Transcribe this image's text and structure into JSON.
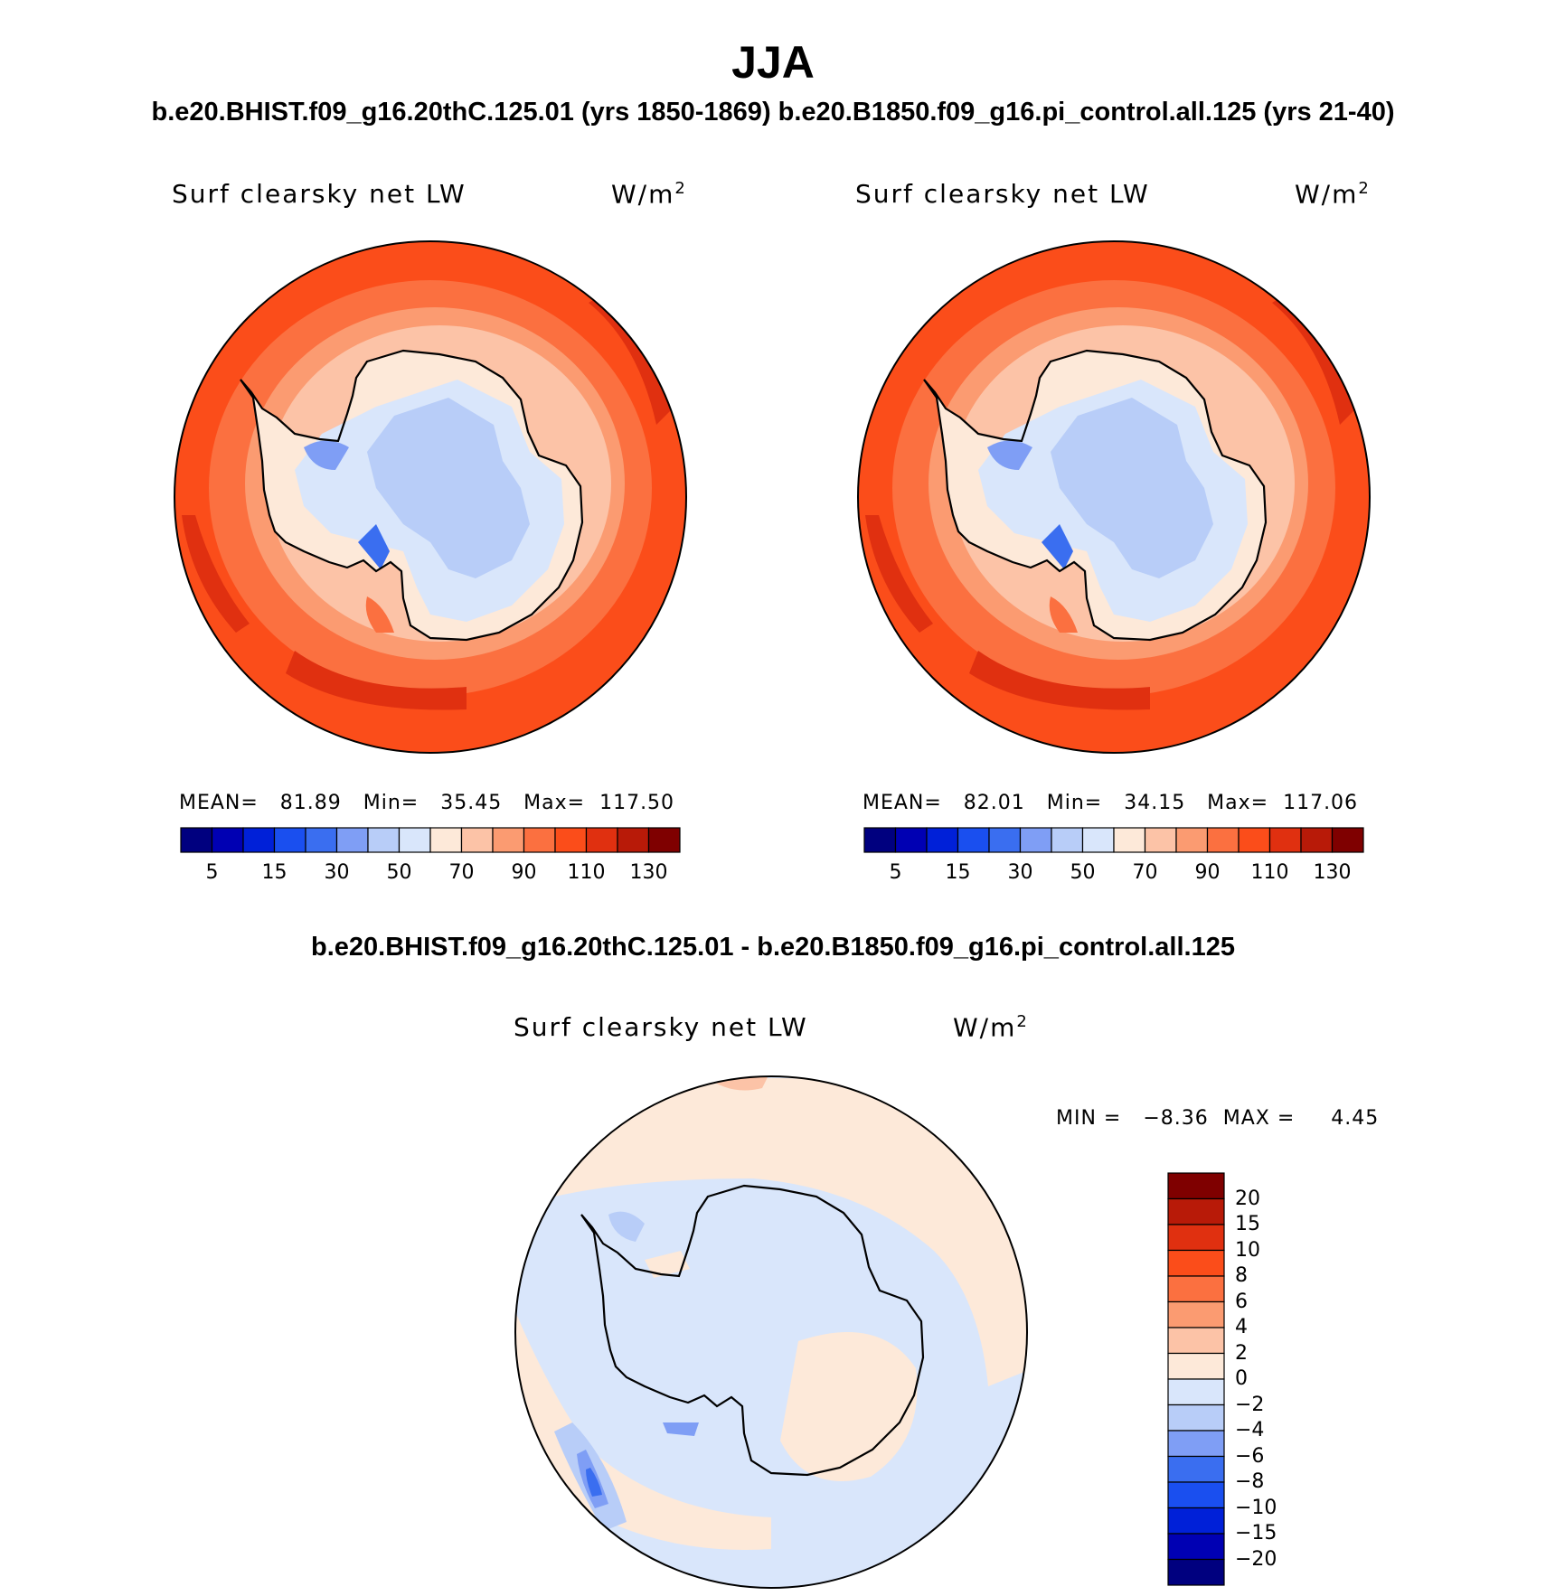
{
  "figure": {
    "title": "JJA",
    "case_pair_title": "b.e20.BHIST.f09_g16.20thC.125.01 (yrs 1850-1869)  b.e20.B1850.f09_g16.pi_control.all.125 (yrs 21-40)",
    "diff_title": "b.e20.BHIST.f09_g16.20thC.125.01 - b.e20.B1850.f09_g16.pi_control.all.125"
  },
  "panels": [
    {
      "variable": "Surf clearsky net LW",
      "units": "W/m",
      "units_exp": "2",
      "stats": "MEAN=   81.89   Min=   35.45   Max=  117.50"
    },
    {
      "variable": "Surf clearsky net LW",
      "units": "W/m",
      "units_exp": "2",
      "stats": "MEAN=   82.01   Min=   34.15   Max=  117.06"
    }
  ],
  "diff_panel": {
    "variable": "Surf clearsky net LW",
    "units": "W/m",
    "units_exp": "2",
    "stats": "MIN =   −8.36  MAX =     4.45"
  },
  "colorbar_abs": {
    "colors": [
      "#00007f",
      "#0000b3",
      "#0020d8",
      "#1a4fef",
      "#3a6ef0",
      "#7f9ef5",
      "#b8cdf8",
      "#d9e6fb",
      "#fde9d9",
      "#fcc3a7",
      "#fb9b71",
      "#fb7040",
      "#fb4d1a",
      "#e03010",
      "#b81a08",
      "#7f0000"
    ],
    "tick_labels": [
      "5",
      "15",
      "30",
      "50",
      "70",
      "90",
      "110",
      "130"
    ]
  },
  "colorbar_diff": {
    "colors": [
      "#7f0000",
      "#b81a08",
      "#e03010",
      "#fb4d1a",
      "#fb7040",
      "#fb9b71",
      "#fcc3a7",
      "#fde9d9",
      "#d9e6fb",
      "#b8cdf8",
      "#7f9ef5",
      "#3a6ef0",
      "#1a4fef",
      "#0020d8",
      "#0000b3",
      "#00007f"
    ],
    "tick_labels": [
      "20",
      "15",
      "10",
      "8",
      "6",
      "4",
      "2",
      "0",
      "−2",
      "−4",
      "−6",
      "−8",
      "−10",
      "−15",
      "−20"
    ]
  }
}
